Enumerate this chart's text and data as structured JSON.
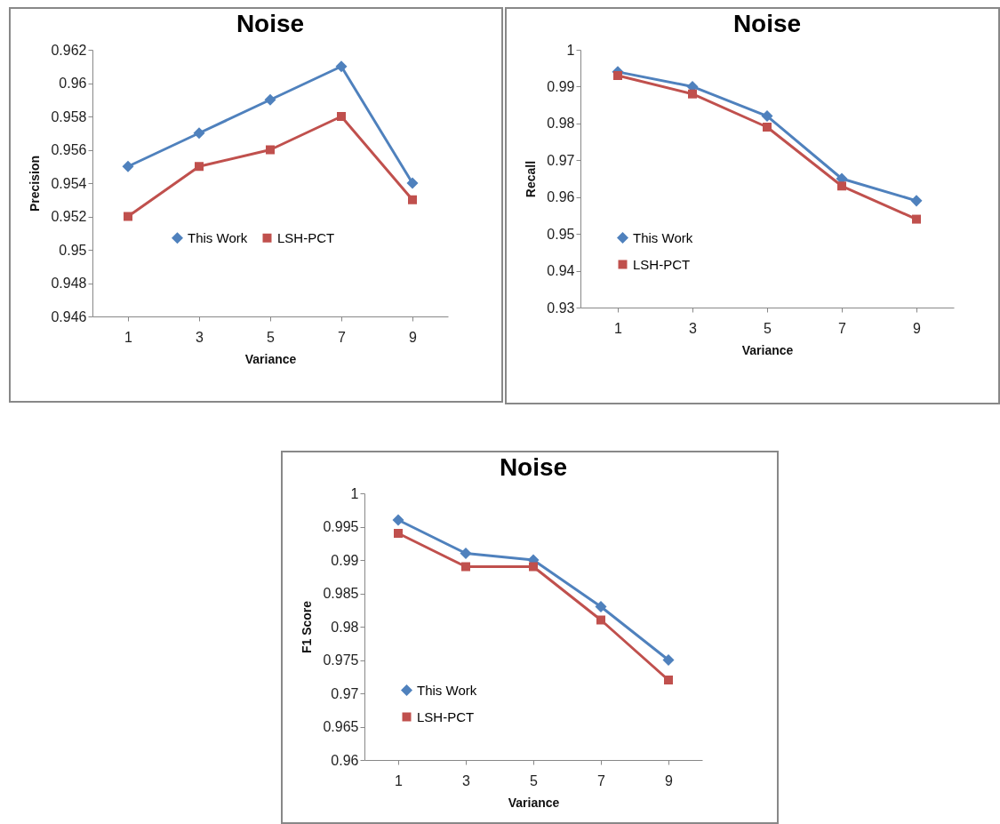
{
  "chart_data": [
    {
      "type": "line",
      "title": "Noise",
      "xlabel": "Variance",
      "ylabel": "Precision",
      "categories": [
        "1",
        "3",
        "5",
        "7",
        "9"
      ],
      "ylim": [
        0.946,
        0.962
      ],
      "yticks": [
        0.946,
        0.948,
        0.95,
        0.952,
        0.954,
        0.956,
        0.958,
        0.96,
        0.962
      ],
      "grid": false,
      "legend": "center",
      "series": [
        {
          "name": "This Work",
          "color": "#4f81bd",
          "marker": "diamond",
          "values": [
            0.955,
            0.957,
            0.959,
            0.961,
            0.954
          ]
        },
        {
          "name": "LSH-PCT",
          "color": "#c0504d",
          "marker": "square",
          "values": [
            0.952,
            0.955,
            0.956,
            0.958,
            0.953
          ]
        }
      ]
    },
    {
      "type": "line",
      "title": "Noise",
      "xlabel": "Variance",
      "ylabel": "Recall",
      "categories": [
        "1",
        "3",
        "5",
        "7",
        "9"
      ],
      "ylim": [
        0.93,
        1
      ],
      "yticks": [
        0.93,
        0.94,
        0.95,
        0.96,
        0.97,
        0.98,
        0.99,
        1
      ],
      "grid": false,
      "legend": "bottom left",
      "series": [
        {
          "name": "This Work",
          "color": "#4f81bd",
          "marker": "diamond",
          "values": [
            0.994,
            0.99,
            0.982,
            0.965,
            0.959
          ]
        },
        {
          "name": "LSH-PCT",
          "color": "#c0504d",
          "marker": "square",
          "values": [
            0.993,
            0.988,
            0.979,
            0.963,
            0.954
          ]
        }
      ]
    },
    {
      "type": "line",
      "title": "Noise",
      "xlabel": "Variance",
      "ylabel": "F1 Score",
      "categories": [
        "1",
        "3",
        "5",
        "7",
        "9"
      ],
      "ylim": [
        0.96,
        1
      ],
      "yticks": [
        0.96,
        0.965,
        0.97,
        0.975,
        0.98,
        0.985,
        0.99,
        0.995,
        1
      ],
      "grid": false,
      "legend": "bottom left",
      "series": [
        {
          "name": "This Work",
          "color": "#4f81bd",
          "marker": "diamond",
          "values": [
            0.996,
            0.991,
            0.99,
            0.983,
            0.975
          ]
        },
        {
          "name": "LSH-PCT",
          "color": "#c0504d",
          "marker": "square",
          "values": [
            0.994,
            0.989,
            0.989,
            0.981,
            0.972
          ]
        }
      ]
    }
  ]
}
